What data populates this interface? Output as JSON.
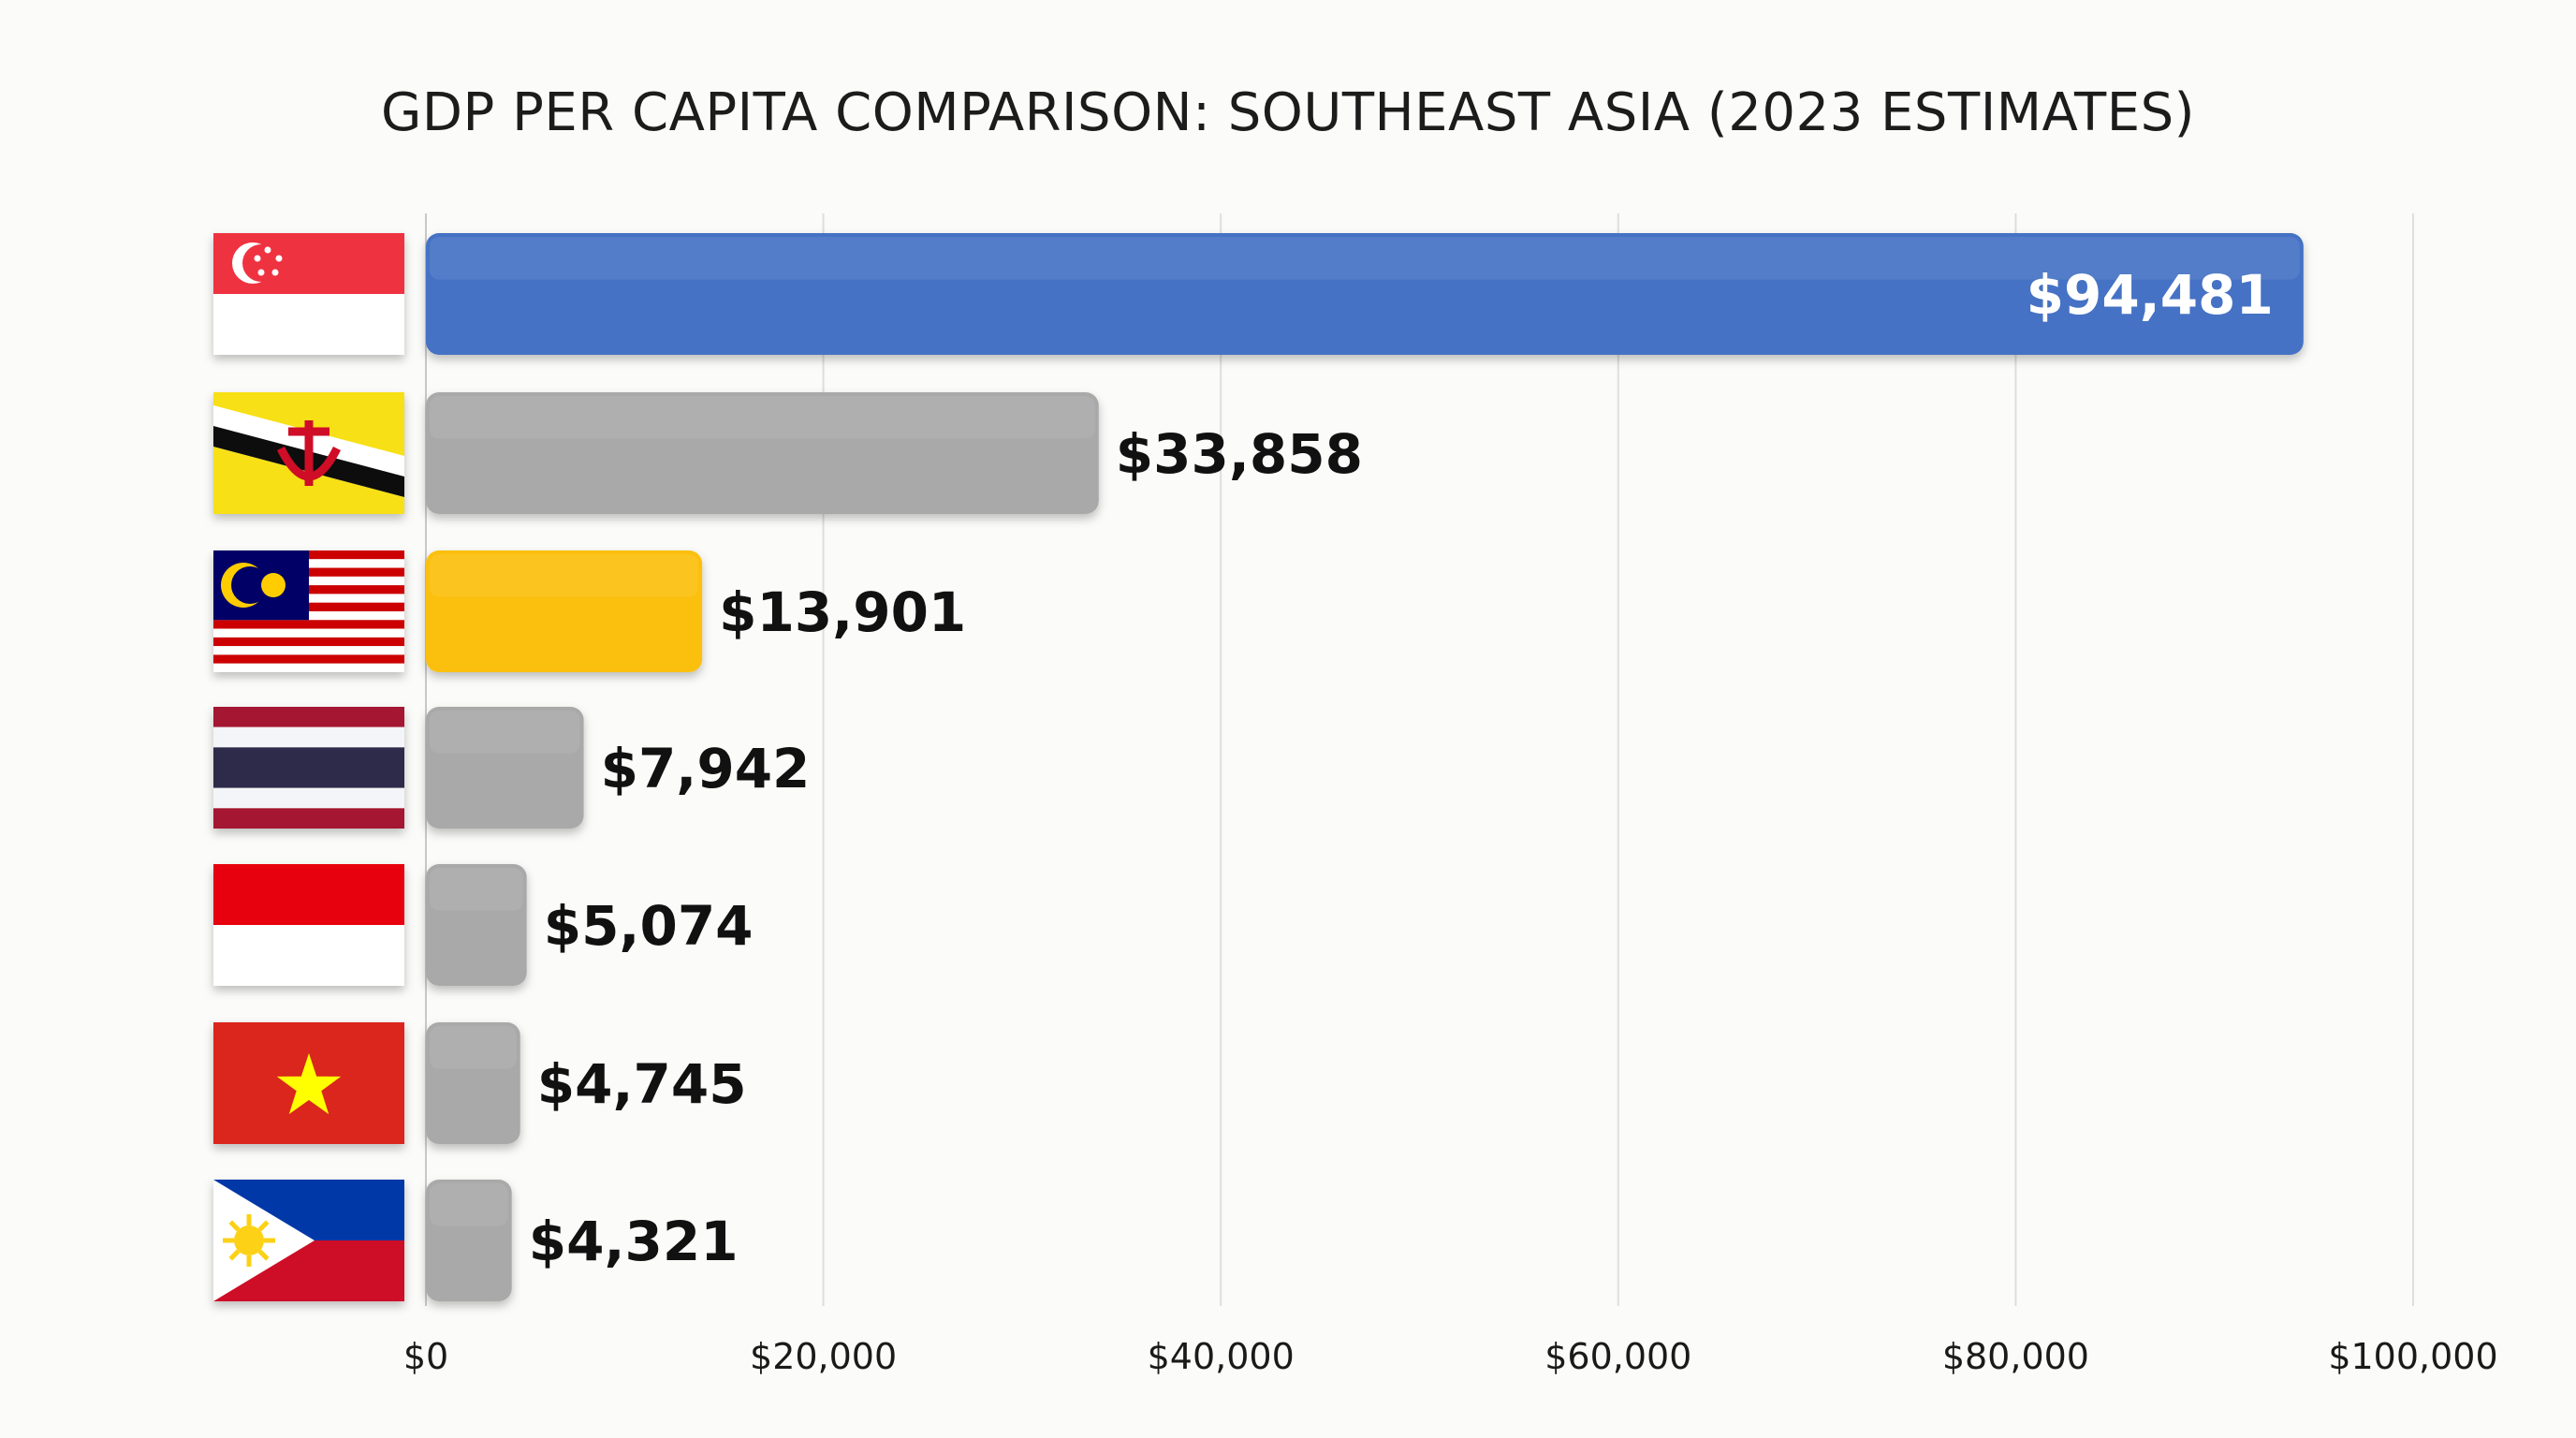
{
  "chart_data": {
    "type": "bar",
    "orientation": "horizontal",
    "title": "GDP PER CAPITA COMPARISON: SOUTHEAST ASIA (2023 ESTIMATES)",
    "xlabel": "",
    "ylabel": "",
    "xlim": [
      0,
      100000
    ],
    "xticks": [
      0,
      20000,
      40000,
      60000,
      80000,
      100000
    ],
    "xtick_labels": [
      "$0",
      "$20,000",
      "$40,000",
      "$60,000",
      "$80,000",
      "$100,000"
    ],
    "grid": "vertical",
    "categories": [
      "Singapore",
      "Brunei",
      "Malaysia",
      "Thailand",
      "Indonesia",
      "Vietnam",
      "Philippines"
    ],
    "category_icons": [
      "flag-singapore",
      "flag-brunei",
      "flag-malaysia",
      "flag-thailand",
      "flag-indonesia",
      "flag-vietnam",
      "flag-philippines"
    ],
    "values": [
      94481,
      33858,
      13901,
      7942,
      5074,
      4745,
      4321
    ],
    "labels": [
      "$94,481",
      "$33,858",
      "$13,901",
      "$7,942",
      "$5,074",
      "$4,745",
      "$4,321"
    ],
    "colors": [
      "#4472c4",
      "#a9a9a9",
      "#fbbf0e",
      "#a9a9a9",
      "#a9a9a9",
      "#a9a9a9",
      "#a9a9a9"
    ]
  }
}
